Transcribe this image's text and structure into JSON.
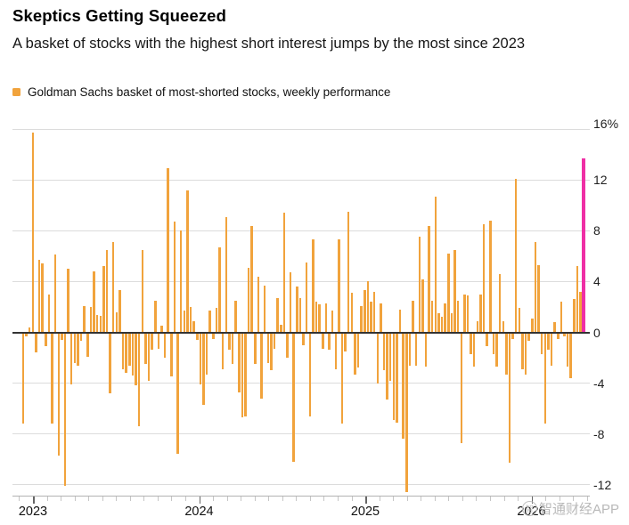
{
  "header": {
    "title": "Skeptics Getting Squeezed",
    "subtitle": "A basket of stocks with the highest short interest jumps by the most since 2023"
  },
  "legend": {
    "label": "Goldman Sachs basket of most-shorted stocks, weekly performance",
    "swatch_color": "#F1A33C"
  },
  "chart_data": {
    "type": "bar",
    "title": "Skeptics Getting Squeezed",
    "subtitle": "A basket of stocks with the highest short interest jumps by the most since 2023",
    "series_name": "Goldman Sachs basket of most-shorted stocks, weekly performance",
    "unit": "%",
    "frequency": "weekly",
    "grid": "horizontal",
    "legend_position": "top-left",
    "y_axis": {
      "side": "right",
      "ticks": [
        16,
        12,
        8,
        4,
        0,
        -4,
        -8,
        -12
      ],
      "top_tick_label": "16%",
      "range": [
        -13.5,
        16
      ]
    },
    "x_axis": {
      "year_labels": [
        "2023",
        "2024",
        "2025",
        "2026"
      ],
      "minor_ticks": "monthly",
      "start": "late 2022",
      "end": "mid 2026"
    },
    "weekly_values": [
      -7.2,
      -0.3,
      0.4,
      15.7,
      -1.6,
      5.7,
      5.4,
      -1.1,
      3.0,
      -7.2,
      6.1,
      -9.7,
      -0.6,
      -12.1,
      5.0,
      -4.1,
      -2.4,
      -2.6,
      -0.7,
      2.1,
      -1.9,
      2.0,
      4.8,
      1.4,
      1.3,
      5.2,
      6.5,
      -4.8,
      7.1,
      1.6,
      3.3,
      -2.9,
      -3.2,
      -2.6,
      -3.4,
      -4.2,
      -7.4,
      6.5,
      -2.5,
      -3.8,
      -1.4,
      2.5,
      -1.3,
      0.5,
      -2.0,
      12.9,
      -3.5,
      8.7,
      -9.6,
      8.0,
      1.7,
      11.2,
      2.0,
      0.9,
      -0.6,
      -4.1,
      -5.7,
      -3.3,
      1.7,
      -0.5,
      1.9,
      6.7,
      -2.9,
      9.1,
      -1.4,
      -2.5,
      2.5,
      -4.7,
      -6.7,
      -6.6,
      5.1,
      8.4,
      -2.5,
      4.4,
      -5.2,
      3.7,
      -2.4,
      -3.0,
      -1.3,
      2.7,
      0.6,
      9.4,
      -2.0,
      4.7,
      -10.2,
      3.6,
      2.7,
      -1.0,
      5.5,
      -6.6,
      7.3,
      2.4,
      2.2,
      -1.3,
      2.3,
      -1.4,
      1.7,
      -2.9,
      7.3,
      -7.2,
      -1.5,
      9.5,
      3.1,
      -3.3,
      -2.8,
      2.1,
      3.3,
      4.0,
      2.4,
      3.2,
      -4.0,
      2.3,
      -3.0,
      -5.3,
      -3.8,
      -6.9,
      -7.1,
      1.8,
      -8.4,
      -12.6,
      -2.6,
      2.5,
      -2.6,
      7.5,
      4.2,
      -2.7,
      8.4,
      2.5,
      10.7,
      1.5,
      1.2,
      2.3,
      6.2,
      1.5,
      6.5,
      2.5,
      -8.7,
      3.0,
      2.9,
      -1.7,
      -2.7,
      0.9,
      3.0,
      8.5,
      -1.1,
      8.8,
      -1.7,
      -2.7,
      4.6,
      0.9,
      -3.3,
      -10.3,
      -0.5,
      12.1,
      1.9,
      -2.9,
      -3.3,
      -0.7,
      1.1,
      7.1,
      5.3,
      -1.7,
      -7.2,
      -1.4,
      -2.6,
      0.8,
      -0.5,
      2.4,
      -0.3,
      -2.7,
      -3.6,
      2.6,
      5.2,
      3.2,
      13.7
    ],
    "highlight_index": 174,
    "highlight_note": "latest week (magenta) jumps ~13.7%, most since 2023",
    "colors": {
      "bar": "#F1A33C",
      "highlight": "#EF2FA5",
      "zero_line": "#333333",
      "gridline": "#dcdcdc",
      "axis_line": "#b3b3b3"
    }
  },
  "watermark": {
    "text": "智通财经APP"
  }
}
